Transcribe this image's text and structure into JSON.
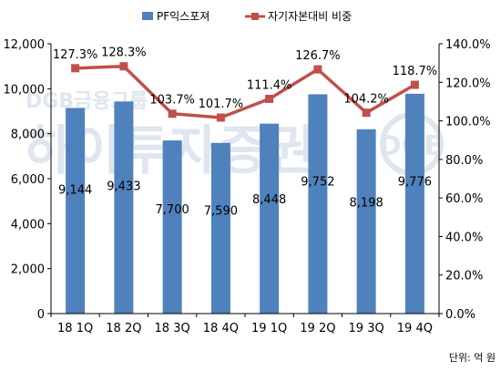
{
  "chart_data": {
    "type": "bar+line",
    "categories": [
      "18 1Q",
      "18 2Q",
      "18 3Q",
      "18 4Q",
      "19 1Q",
      "19 2Q",
      "19 3Q",
      "19 4Q"
    ],
    "series": [
      {
        "name": "PF익스포져",
        "type": "bar",
        "axis": "left",
        "values": [
          9144,
          9433,
          7700,
          7590,
          8448,
          9752,
          8198,
          9776
        ],
        "labels": [
          "9,144",
          "9,433",
          "7,700",
          "7,590",
          "8,448",
          "9,752",
          "8,198",
          "9,776"
        ],
        "color": "#4f81bd"
      },
      {
        "name": "자기자본대비 비중",
        "type": "line",
        "axis": "right",
        "values": [
          127.3,
          128.3,
          103.7,
          101.7,
          111.4,
          126.7,
          104.2,
          118.7
        ],
        "labels": [
          "127.3%",
          "128.3%",
          "103.7%",
          "101.7%",
          "111.4%",
          "126.7%",
          "104.2%",
          "118.7%"
        ],
        "color": "#c0504d"
      }
    ],
    "y_left": {
      "range": [
        0,
        12000
      ],
      "ticks": [
        0,
        2000,
        4000,
        6000,
        8000,
        10000,
        12000
      ],
      "tick_labels": [
        "0",
        "2,000",
        "4,000",
        "6,000",
        "8,000",
        "10,000",
        "12,000"
      ]
    },
    "y_right": {
      "range": [
        0,
        140
      ],
      "ticks": [
        0,
        20,
        40,
        60,
        80,
        100,
        120,
        140
      ],
      "tick_labels": [
        "0.0%",
        "20.0%",
        "40.0%",
        "60.0%",
        "80.0%",
        "100.0%",
        "120.0%",
        "140.0%"
      ]
    },
    "grid": false,
    "legend_position": "top",
    "unit_note": "단위: 억 원",
    "watermark": {
      "brand": "DGB금융그룹",
      "company": "하이투자증권",
      "logo": "DGB"
    }
  }
}
